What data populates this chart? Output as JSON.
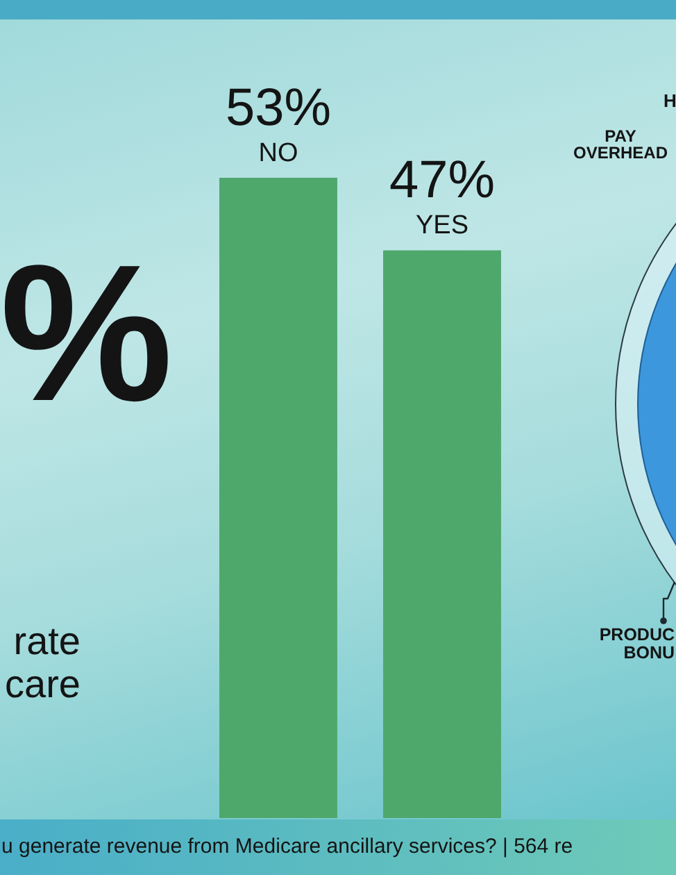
{
  "chart_data": {
    "type": "bar",
    "categories": [
      "NO",
      "YES"
    ],
    "values": [
      53,
      47
    ],
    "color": "#4ea86c",
    "value_labels": [
      "53%",
      "47%"
    ],
    "annotations": [
      "%",
      "rate\ncare",
      "H",
      "PAY\nOVERHEAD",
      "PRODUC\nBONU",
      "u generate revenue from Medicare ancillary services? | 564 re"
    ]
  }
}
